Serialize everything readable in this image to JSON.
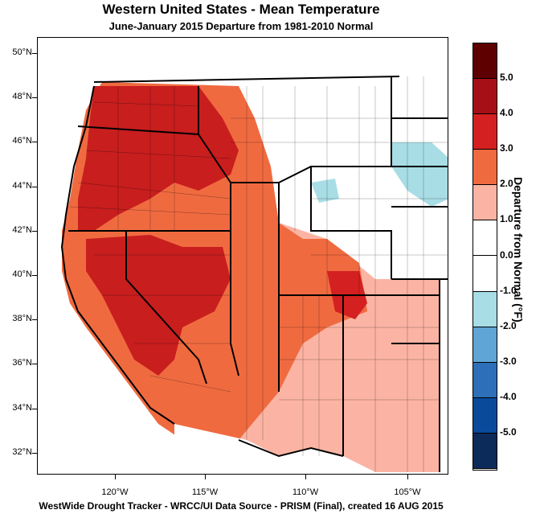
{
  "title": "Western United States - Mean Temperature",
  "subtitle": "June-January 2015  Departure from 1981-2010 Normal",
  "footer": "WestWide Drought Tracker - WRCC/UI  Data Source - PRISM (Final), created 16 AUG 2015",
  "lat_labels": [
    "50°N",
    "48°N",
    "46°N",
    "44°N",
    "42°N",
    "40°N",
    "38°N",
    "36°N",
    "34°N",
    "32°N"
  ],
  "lon_labels": [
    "120°W",
    "115°W",
    "110°W",
    "105°W"
  ],
  "legend": {
    "title": "Departure from Normal (°F)",
    "labels": [
      "5.0",
      "4.0",
      "3.0",
      "2.0",
      "1.0",
      "0.0",
      "-1.0",
      "-2.0",
      "-3.0",
      "-4.0",
      "-5.0"
    ],
    "colors": [
      "#5e0000",
      "#a50f15",
      "#d42020",
      "#f06a40",
      "#fbb4a3",
      "#ffffff",
      "#ffffff",
      "#a8dde6",
      "#5fa5d6",
      "#2d6fb8",
      "#0a4a9a",
      "#0c2a5a"
    ]
  },
  "map_colors": {
    "warm_strong": "#c81e1e",
    "warm": "#f06a40",
    "warm_light": "#fbb4a3",
    "cool": "#a8dde6",
    "neutral": "#ffffff"
  }
}
